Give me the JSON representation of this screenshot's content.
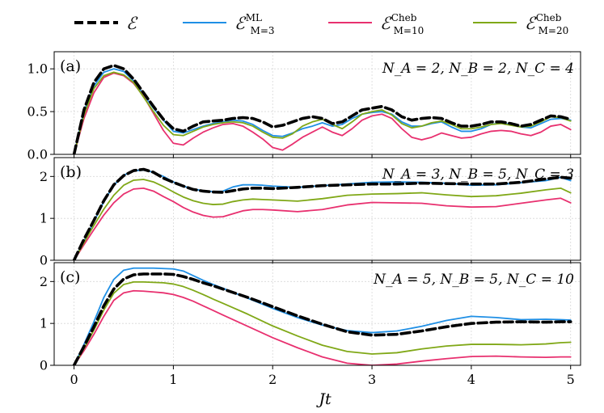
{
  "chart_data": {
    "type": "line",
    "xlabel": "Jt",
    "xlim": [
      -0.2,
      5.1
    ],
    "xticks": [
      0,
      1,
      2,
      3,
      4,
      5
    ],
    "legend": {
      "placement": "top",
      "entries": [
        {
          "key": "exact",
          "symbol": "ℰ",
          "sub": "",
          "sup": "",
          "color": "#000000",
          "dashed": true
        },
        {
          "key": "ml",
          "symbol": "ℰ",
          "sub": "M=3",
          "sup": "ML",
          "color": "#1f8fe5",
          "dashed": false
        },
        {
          "key": "cheb10",
          "symbol": "ℰ",
          "sub": "M=10",
          "sup": "Cheb",
          "color": "#e8306f",
          "dashed": false
        },
        {
          "key": "cheb20",
          "symbol": "ℰ",
          "sub": "M=20",
          "sup": "Cheb",
          "color": "#80a817",
          "dashed": false
        }
      ]
    },
    "panels": [
      {
        "label": "(a)",
        "params": "N_A = 2,  N_B = 2,  N_C = 4",
        "ylim": [
          0,
          1.2
        ],
        "yticks": [
          0.0,
          0.5,
          1.0
        ],
        "ytick_labels": [
          "0.0",
          "0.5",
          "1.0"
        ],
        "x": [
          0,
          0.1,
          0.2,
          0.3,
          0.4,
          0.5,
          0.6,
          0.7,
          0.8,
          0.9,
          1.0,
          1.1,
          1.2,
          1.3,
          1.4,
          1.5,
          1.6,
          1.7,
          1.8,
          1.9,
          2.0,
          2.1,
          2.2,
          2.3,
          2.4,
          2.5,
          2.6,
          2.7,
          2.8,
          2.9,
          3.0,
          3.1,
          3.2,
          3.3,
          3.4,
          3.5,
          3.6,
          3.7,
          3.8,
          3.9,
          4.0,
          4.1,
          4.2,
          4.3,
          4.4,
          4.5,
          4.6,
          4.7,
          4.8,
          4.9,
          5.0
        ],
        "series": [
          {
            "name": "exact",
            "values": [
              0,
              0.52,
              0.84,
              1.0,
              1.04,
              1.0,
              0.88,
              0.72,
              0.56,
              0.41,
              0.3,
              0.27,
              0.33,
              0.38,
              0.39,
              0.4,
              0.42,
              0.43,
              0.42,
              0.38,
              0.32,
              0.34,
              0.38,
              0.42,
              0.44,
              0.42,
              0.36,
              0.38,
              0.45,
              0.52,
              0.54,
              0.56,
              0.52,
              0.44,
              0.4,
              0.42,
              0.43,
              0.42,
              0.37,
              0.33,
              0.33,
              0.35,
              0.38,
              0.38,
              0.36,
              0.33,
              0.35,
              0.4,
              0.45,
              0.44,
              0.41
            ]
          },
          {
            "name": "ml",
            "values": [
              0,
              0.5,
              0.8,
              0.96,
              1.0,
              0.97,
              0.86,
              0.7,
              0.54,
              0.4,
              0.27,
              0.25,
              0.29,
              0.33,
              0.36,
              0.38,
              0.4,
              0.39,
              0.35,
              0.28,
              0.22,
              0.21,
              0.25,
              0.3,
              0.33,
              0.37,
              0.33,
              0.35,
              0.42,
              0.47,
              0.49,
              0.5,
              0.47,
              0.38,
              0.33,
              0.33,
              0.36,
              0.38,
              0.32,
              0.27,
              0.27,
              0.3,
              0.35,
              0.37,
              0.35,
              0.32,
              0.31,
              0.36,
              0.41,
              0.42,
              0.4
            ]
          },
          {
            "name": "cheb10",
            "values": [
              0,
              0.42,
              0.72,
              0.9,
              0.95,
              0.92,
              0.83,
              0.68,
              0.48,
              0.28,
              0.13,
              0.11,
              0.19,
              0.26,
              0.31,
              0.35,
              0.36,
              0.33,
              0.26,
              0.18,
              0.08,
              0.05,
              0.12,
              0.2,
              0.26,
              0.32,
              0.26,
              0.22,
              0.3,
              0.4,
              0.45,
              0.47,
              0.42,
              0.3,
              0.2,
              0.17,
              0.2,
              0.25,
              0.22,
              0.19,
              0.2,
              0.24,
              0.27,
              0.28,
              0.27,
              0.24,
              0.22,
              0.26,
              0.33,
              0.35,
              0.29
            ]
          },
          {
            "name": "cheb20",
            "values": [
              0,
              0.46,
              0.77,
              0.92,
              0.96,
              0.93,
              0.84,
              0.67,
              0.5,
              0.34,
              0.23,
              0.22,
              0.27,
              0.32,
              0.35,
              0.37,
              0.38,
              0.37,
              0.33,
              0.26,
              0.2,
              0.19,
              0.24,
              0.33,
              0.38,
              0.41,
              0.35,
              0.3,
              0.38,
              0.47,
              0.5,
              0.52,
              0.46,
              0.36,
              0.31,
              0.33,
              0.37,
              0.39,
              0.35,
              0.3,
              0.3,
              0.32,
              0.35,
              0.36,
              0.34,
              0.32,
              0.33,
              0.38,
              0.44,
              0.43,
              0.39
            ]
          }
        ]
      },
      {
        "label": "(b)",
        "params": "N_A = 3,  N_B = 5,  N_C = 3",
        "ylim": [
          0,
          2.45
        ],
        "yticks": [
          0,
          1,
          2
        ],
        "ytick_labels": [
          "0",
          "1",
          "2"
        ],
        "x": [
          0,
          0.1,
          0.2,
          0.3,
          0.4,
          0.5,
          0.6,
          0.7,
          0.8,
          0.9,
          1.0,
          1.1,
          1.2,
          1.3,
          1.4,
          1.5,
          1.6,
          1.7,
          1.8,
          1.9,
          2.0,
          2.25,
          2.5,
          2.75,
          3.0,
          3.25,
          3.5,
          3.75,
          4.0,
          4.25,
          4.5,
          4.75,
          4.9,
          5.0
        ],
        "series": [
          {
            "name": "exact",
            "values": [
              0,
              0.5,
              0.95,
              1.42,
              1.8,
              2.02,
              2.14,
              2.17,
              2.1,
              1.96,
              1.86,
              1.77,
              1.69,
              1.65,
              1.63,
              1.62,
              1.66,
              1.7,
              1.72,
              1.72,
              1.71,
              1.74,
              1.78,
              1.8,
              1.82,
              1.82,
              1.84,
              1.83,
              1.82,
              1.82,
              1.86,
              1.94,
              1.98,
              1.96
            ]
          },
          {
            "name": "ml",
            "values": [
              0,
              0.45,
              0.92,
              1.4,
              1.79,
              2.03,
              2.14,
              2.15,
              2.1,
              2.0,
              1.87,
              1.77,
              1.7,
              1.66,
              1.64,
              1.65,
              1.75,
              1.8,
              1.8,
              1.79,
              1.77,
              1.74,
              1.78,
              1.82,
              1.86,
              1.87,
              1.86,
              1.84,
              1.79,
              1.8,
              1.85,
              1.9,
              1.98,
              1.9
            ]
          },
          {
            "name": "cheb10",
            "values": [
              0,
              0.37,
              0.73,
              1.08,
              1.37,
              1.58,
              1.7,
              1.72,
              1.65,
              1.52,
              1.4,
              1.26,
              1.15,
              1.07,
              1.03,
              1.04,
              1.11,
              1.18,
              1.21,
              1.21,
              1.2,
              1.16,
              1.21,
              1.32,
              1.38,
              1.37,
              1.36,
              1.3,
              1.27,
              1.28,
              1.36,
              1.44,
              1.48,
              1.37
            ]
          },
          {
            "name": "cheb20",
            "values": [
              0,
              0.42,
              0.83,
              1.22,
              1.55,
              1.79,
              1.91,
              1.93,
              1.87,
              1.76,
              1.63,
              1.51,
              1.42,
              1.36,
              1.33,
              1.34,
              1.4,
              1.44,
              1.46,
              1.45,
              1.44,
              1.41,
              1.47,
              1.55,
              1.58,
              1.59,
              1.61,
              1.56,
              1.52,
              1.54,
              1.6,
              1.68,
              1.72,
              1.61
            ]
          }
        ]
      },
      {
        "label": "(c)",
        "params": "N_A = 5,  N_B = 5,  N_C = 10",
        "ylim": [
          0,
          2.45
        ],
        "yticks": [
          0,
          1,
          2
        ],
        "ytick_labels": [
          "0",
          "1",
          "2"
        ],
        "x": [
          0,
          0.1,
          0.2,
          0.3,
          0.4,
          0.5,
          0.6,
          0.7,
          0.8,
          0.9,
          1.0,
          1.1,
          1.2,
          1.3,
          1.4,
          1.5,
          1.75,
          2.0,
          2.25,
          2.5,
          2.75,
          3.0,
          3.25,
          3.5,
          3.75,
          4.0,
          4.25,
          4.5,
          4.75,
          4.9,
          5.0
        ],
        "series": [
          {
            "name": "exact",
            "values": [
              0,
              0.45,
              0.92,
              1.42,
              1.82,
              2.06,
              2.16,
              2.18,
              2.18,
              2.18,
              2.17,
              2.12,
              2.05,
              1.97,
              1.9,
              1.82,
              1.62,
              1.4,
              1.18,
              0.98,
              0.8,
              0.72,
              0.74,
              0.82,
              0.92,
              1.0,
              1.03,
              1.04,
              1.03,
              1.04,
              1.04
            ]
          },
          {
            "name": "ml",
            "values": [
              0,
              0.5,
              1.04,
              1.62,
              2.05,
              2.27,
              2.32,
              2.32,
              2.32,
              2.31,
              2.3,
              2.25,
              2.14,
              2.03,
              1.93,
              1.84,
              1.6,
              1.36,
              1.14,
              0.96,
              0.83,
              0.78,
              0.82,
              0.93,
              1.07,
              1.17,
              1.14,
              1.09,
              1.1,
              1.09,
              1.08
            ]
          },
          {
            "name": "cheb10",
            "values": [
              0,
              0.35,
              0.74,
              1.17,
              1.55,
              1.73,
              1.78,
              1.77,
              1.75,
              1.73,
              1.69,
              1.62,
              1.53,
              1.42,
              1.31,
              1.2,
              0.93,
              0.66,
              0.42,
              0.2,
              0.05,
              0.0,
              0.03,
              0.1,
              0.16,
              0.21,
              0.22,
              0.2,
              0.19,
              0.2,
              0.2
            ]
          },
          {
            "name": "cheb20",
            "values": [
              0,
              0.4,
              0.84,
              1.32,
              1.72,
              1.93,
              1.99,
              1.99,
              1.98,
              1.97,
              1.94,
              1.88,
              1.79,
              1.69,
              1.58,
              1.48,
              1.22,
              0.94,
              0.7,
              0.48,
              0.33,
              0.27,
              0.3,
              0.39,
              0.46,
              0.5,
              0.5,
              0.49,
              0.51,
              0.54,
              0.55
            ]
          }
        ]
      }
    ]
  }
}
